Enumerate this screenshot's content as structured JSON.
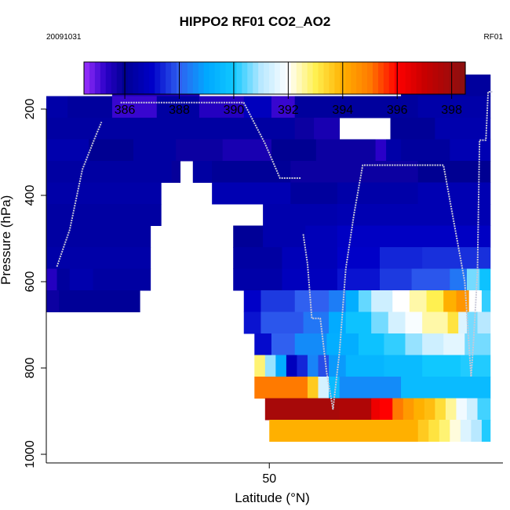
{
  "chart_data": {
    "type": "heatmap",
    "title": "HIPPO2 RF01 CO2_AO2",
    "date": "20091031",
    "flight": "RF01",
    "xlabel": "Latitude (°N)",
    "ylabel": "Pressure (hPa)",
    "xticks": [
      50
    ],
    "yticks": [
      200,
      400,
      600,
      800,
      1000
    ],
    "colorbar": {
      "ticks": [
        386,
        388,
        390,
        392,
        394,
        396,
        398
      ],
      "range": [
        384.5,
        398.5
      ],
      "stops": [
        {
          "v": 384.5,
          "c": "#9b30ff"
        },
        {
          "v": 385.3,
          "c": "#2a00c8"
        },
        {
          "v": 386.0,
          "c": "#000092"
        },
        {
          "v": 387.0,
          "c": "#0000c8"
        },
        {
          "v": 388.0,
          "c": "#3060f0"
        },
        {
          "v": 389.0,
          "c": "#00a8ff"
        },
        {
          "v": 390.0,
          "c": "#10c8ff"
        },
        {
          "v": 391.0,
          "c": "#b8e8ff"
        },
        {
          "v": 392.0,
          "c": "#ffffff"
        },
        {
          "v": 393.0,
          "c": "#fff050"
        },
        {
          "v": 394.0,
          "c": "#ffb000"
        },
        {
          "v": 395.0,
          "c": "#ff7a00"
        },
        {
          "v": 396.0,
          "c": "#ff0000"
        },
        {
          "v": 397.0,
          "c": "#c80000"
        },
        {
          "v": 398.5,
          "c": "#8a1010"
        }
      ]
    },
    "xrange": [
      39.5,
      61.0
    ],
    "yrange": [
      1020,
      60
    ],
    "grid": {
      "lat_start": 39.5,
      "lat_step": 0.5,
      "p_start": 120,
      "p_step": 50,
      "rows": [
        {
          "p": 120,
          "segments": [
            [
              42.6,
              46.7,
              385.5
            ],
            [
              56.2,
              60.4,
              386.2
            ]
          ]
        },
        {
          "p": 170,
          "segments": [
            [
              39.5,
              40.5,
              386.4
            ],
            [
              40.5,
              42.6,
              386.2
            ],
            [
              42.6,
              44.7,
              385.2
            ],
            [
              44.7,
              46.7,
              386.3
            ],
            [
              46.7,
              48.8,
              385.4
            ],
            [
              48.8,
              50.1,
              386.8
            ],
            [
              50.1,
              51.2,
              385.2
            ],
            [
              51.2,
              57.0,
              386.2
            ],
            [
              57.0,
              60.4,
              386.4
            ]
          ]
        },
        {
          "p": 220,
          "segments": [
            [
              39.5,
              51.2,
              386.3
            ],
            [
              51.2,
              52.1,
              385.8
            ],
            [
              52.1,
              53.3,
              385.6
            ],
            [
              55.7,
              57.8,
              386.1
            ],
            [
              57.8,
              60.4,
              386.5
            ]
          ]
        },
        {
          "p": 270,
          "segments": [
            [
              39.5,
              41.5,
              386.5
            ],
            [
              41.5,
              43.6,
              386.0
            ],
            [
              43.6,
              45.6,
              386.3
            ],
            [
              45.6,
              47.8,
              385.8
            ],
            [
              47.8,
              50.1,
              385.6
            ],
            [
              50.1,
              52.2,
              386.0
            ],
            [
              52.2,
              55.0,
              385.8
            ],
            [
              55.0,
              55.5,
              385.3
            ],
            [
              55.5,
              56.2,
              386.4
            ],
            [
              56.2,
              58.5,
              386.2
            ],
            [
              58.5,
              60.4,
              386.6
            ]
          ]
        },
        {
          "p": 320,
          "segments": [
            [
              39.5,
              45.4,
              386.3
            ],
            [
              45.4,
              45.8,
              385.9
            ],
            [
              46.4,
              47.3,
              386.3
            ],
            [
              47.3,
              51.0,
              386.1
            ],
            [
              51.0,
              57.0,
              385.8
            ],
            [
              57.0,
              60.4,
              386.0
            ]
          ]
        },
        {
          "p": 370,
          "segments": [
            [
              39.5,
              44.9,
              386.4
            ],
            [
              47.3,
              51.0,
              386.6
            ],
            [
              51.0,
              53.2,
              386.2
            ],
            [
              53.2,
              57.0,
              386.4
            ],
            [
              57.0,
              60.4,
              386.6
            ]
          ]
        },
        {
          "p": 420,
          "segments": [
            [
              39.5,
              44.9,
              386.3
            ],
            [
              49.7,
              53.2,
              386.5
            ],
            [
              53.2,
              60.4,
              386.6
            ]
          ]
        },
        {
          "p": 470,
          "segments": [
            [
              39.5,
              44.4,
              386.3
            ],
            [
              48.3,
              49.7,
              386.1
            ],
            [
              49.7,
              51.7,
              386.5
            ],
            [
              51.7,
              53.2,
              386.7
            ],
            [
              53.2,
              60.4,
              386.9
            ]
          ]
        },
        {
          "p": 520,
          "segments": [
            [
              39.5,
              44.4,
              386.4
            ],
            [
              48.3,
              50.6,
              386.3
            ],
            [
              50.6,
              53.2,
              386.7
            ],
            [
              53.2,
              55.2,
              387.0
            ],
            [
              55.2,
              57.2,
              387.4
            ],
            [
              57.2,
              60.4,
              387.5
            ]
          ]
        },
        {
          "p": 570,
          "segments": [
            [
              39.5,
              40.0,
              385.4
            ],
            [
              40.0,
              40.6,
              386.2
            ],
            [
              40.6,
              41.7,
              386.5
            ],
            [
              41.7,
              44.4,
              386.3
            ],
            [
              48.3,
              50.6,
              386.4
            ],
            [
              50.6,
              53.2,
              386.8
            ],
            [
              53.2,
              55.2,
              387.2
            ],
            [
              55.2,
              56.7,
              387.6
            ],
            [
              56.7,
              58.5,
              387.9
            ],
            [
              58.5,
              59.3,
              388.3
            ],
            [
              59.3,
              59.9,
              390.6
            ],
            [
              59.9,
              60.4,
              389.8
            ]
          ]
        },
        {
          "p": 620,
          "segments": [
            [
              39.5,
              40.1,
              385.8
            ],
            [
              40.1,
              43.9,
              386.1
            ],
            [
              48.8,
              49.6,
              387.0
            ],
            [
              49.6,
              51.2,
              387.6
            ],
            [
              51.2,
              52.8,
              388.0
            ],
            [
              52.8,
              53.6,
              388.4
            ],
            [
              53.6,
              54.2,
              389.2
            ],
            [
              54.2,
              54.8,
              390.5
            ],
            [
              54.8,
              55.8,
              391.3
            ],
            [
              55.8,
              56.6,
              392.0
            ],
            [
              56.6,
              57.4,
              392.5
            ],
            [
              57.4,
              58.2,
              393.0
            ],
            [
              58.2,
              58.8,
              394.0
            ],
            [
              58.8,
              59.4,
              394.5
            ],
            [
              59.4,
              60.0,
              392.0
            ],
            [
              60.0,
              60.4,
              390.2
            ]
          ]
        },
        {
          "p": 670,
          "segments": [
            [
              48.8,
              49.6,
              387.2
            ],
            [
              49.6,
              51.6,
              387.9
            ],
            [
              51.6,
              52.8,
              388.3
            ],
            [
              52.8,
              53.6,
              389.1
            ],
            [
              53.6,
              54.8,
              389.8
            ],
            [
              54.8,
              55.6,
              390.6
            ],
            [
              55.6,
              56.4,
              391.4
            ],
            [
              56.4,
              57.2,
              391.9
            ],
            [
              57.2,
              58.4,
              392.5
            ],
            [
              58.4,
              58.9,
              393.2
            ],
            [
              58.9,
              59.3,
              391.5
            ],
            [
              59.3,
              59.8,
              390.6
            ],
            [
              59.8,
              60.4,
              391.0
            ]
          ]
        },
        {
          "p": 720,
          "segments": [
            [
              49.3,
              50.1,
              387.1
            ],
            [
              50.1,
              51.2,
              388.0
            ],
            [
              51.2,
              52.7,
              388.6
            ],
            [
              52.7,
              54.2,
              389.2
            ],
            [
              54.2,
              55.4,
              389.8
            ],
            [
              55.4,
              56.4,
              390.2
            ],
            [
              56.4,
              57.2,
              390.8
            ],
            [
              57.2,
              58.2,
              391.3
            ],
            [
              58.2,
              59.2,
              391.6
            ],
            [
              59.2,
              60.4,
              390.6
            ]
          ]
        },
        {
          "p": 770,
          "segments": [
            [
              49.3,
              49.8,
              392.8
            ],
            [
              49.8,
              50.3,
              390.8
            ],
            [
              50.3,
              50.8,
              389.1
            ],
            [
              50.8,
              51.3,
              386.8
            ],
            [
              51.3,
              51.8,
              387.4
            ],
            [
              51.8,
              52.3,
              388.5
            ],
            [
              52.3,
              52.8,
              387.8
            ],
            [
              52.8,
              53.6,
              388.8
            ],
            [
              53.6,
              55.4,
              389.4
            ],
            [
              55.4,
              57.2,
              389.6
            ],
            [
              57.2,
              59.0,
              390.0
            ],
            [
              59.0,
              60.4,
              390.1
            ]
          ]
        },
        {
          "p": 820,
          "segments": [
            [
              49.3,
              51.8,
              395.0
            ],
            [
              51.8,
              52.3,
              393.6
            ],
            [
              52.3,
              52.8,
              391.4
            ],
            [
              52.8,
              53.3,
              389.6
            ],
            [
              53.3,
              56.2,
              388.6
            ],
            [
              56.2,
              60.4,
              389.6
            ]
          ]
        },
        {
          "p": 870,
          "segments": [
            [
              49.8,
              53.3,
              397.8
            ],
            [
              53.3,
              54.8,
              397.6
            ],
            [
              54.8,
              55.2,
              396.3
            ],
            [
              55.2,
              55.8,
              396.0
            ],
            [
              55.8,
              56.3,
              395.0
            ],
            [
              56.3,
              56.8,
              394.4
            ],
            [
              56.8,
              57.3,
              394.0
            ],
            [
              57.3,
              57.8,
              393.8
            ],
            [
              57.8,
              58.3,
              393.3
            ],
            [
              58.3,
              58.8,
              392.6
            ],
            [
              58.8,
              59.3,
              391.8
            ],
            [
              59.3,
              59.8,
              391.3
            ],
            [
              59.8,
              60.4,
              390.3
            ]
          ]
        },
        {
          "p": 920,
          "segments": [
            [
              50.0,
              57.0,
              394.0
            ],
            [
              57.0,
              57.5,
              393.6
            ],
            [
              57.5,
              58.0,
              393.2
            ],
            [
              58.0,
              58.5,
              392.8
            ],
            [
              58.5,
              59.0,
              392.2
            ],
            [
              59.0,
              59.5,
              391.5
            ],
            [
              59.5,
              60.0,
              391.0
            ],
            [
              60.0,
              60.4,
              390.1
            ]
          ]
        }
      ]
    },
    "flight_track": [
      [
        [
          40.0,
          565
        ],
        [
          40.6,
          480
        ],
        [
          41.2,
          340
        ],
        [
          41.8,
          265
        ],
        [
          42.1,
          230
        ]
      ],
      [
        [
          43.0,
          185
        ],
        [
          44.0,
          185
        ],
        [
          46.0,
          185
        ],
        [
          47.0,
          185
        ],
        [
          48.0,
          185
        ],
        [
          48.8,
          185
        ],
        [
          49.8,
          280
        ],
        [
          50.5,
          360
        ],
        [
          51.5,
          360
        ]
      ],
      [
        [
          51.6,
          490
        ],
        [
          51.8,
          560
        ],
        [
          52.0,
          685
        ],
        [
          52.4,
          685
        ],
        [
          52.7,
          810
        ],
        [
          53.0,
          895
        ],
        [
          53.3,
          765
        ],
        [
          53.6,
          570
        ],
        [
          54.0,
          440
        ],
        [
          54.4,
          330
        ],
        [
          55.0,
          330
        ],
        [
          56.5,
          330
        ],
        [
          57.2,
          330
        ],
        [
          58.2,
          330
        ],
        [
          59.2,
          600
        ],
        [
          59.5,
          820
        ],
        [
          59.6,
          750
        ],
        [
          59.8,
          580
        ],
        [
          59.9,
          272
        ],
        [
          60.2,
          272
        ],
        [
          60.3,
          160
        ],
        [
          60.5,
          160
        ]
      ]
    ]
  }
}
